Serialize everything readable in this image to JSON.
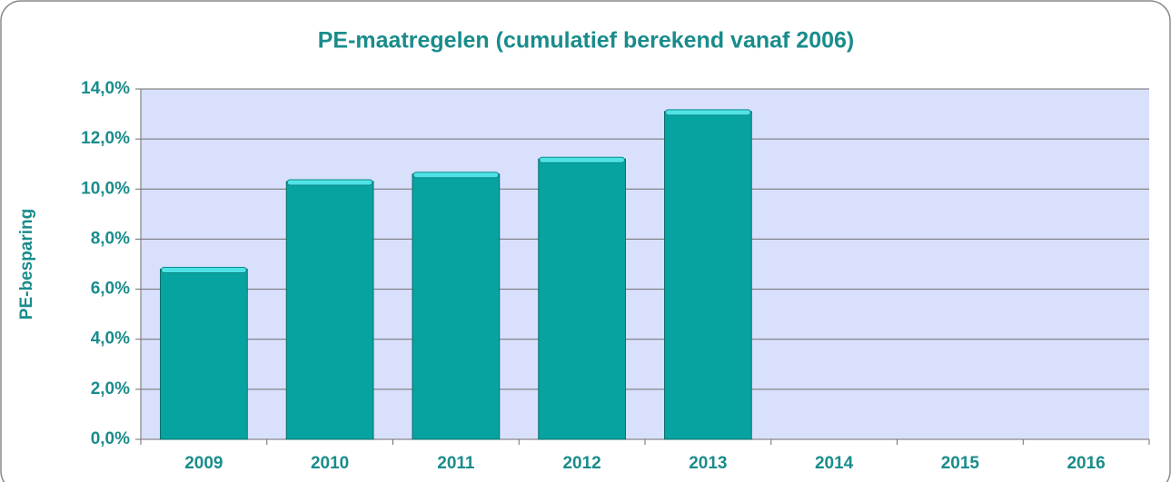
{
  "chart_data": {
    "type": "bar",
    "title": "PE-maatregelen (cumulatief berekend vanaf 2006)",
    "y_label": "PE-besparing",
    "categories": [
      "2009",
      "2010",
      "2011",
      "2012",
      "2013",
      "2014",
      "2015",
      "2016"
    ],
    "values": [
      6.8,
      10.3,
      10.6,
      11.2,
      13.1,
      null,
      null,
      null
    ],
    "color": "#07a3a0",
    "ylim": [
      0,
      14
    ],
    "yticks": [
      {
        "value": 0,
        "label": "0,0%"
      },
      {
        "value": 2,
        "label": "2,0%"
      },
      {
        "value": 4,
        "label": "4,0%"
      },
      {
        "value": 6,
        "label": "6,0%"
      },
      {
        "value": 8,
        "label": "8,0%"
      },
      {
        "value": 10,
        "label": "10,0%"
      },
      {
        "value": 12,
        "label": "12,0%"
      },
      {
        "value": 14,
        "label": "14,0%"
      }
    ],
    "grid": true
  }
}
